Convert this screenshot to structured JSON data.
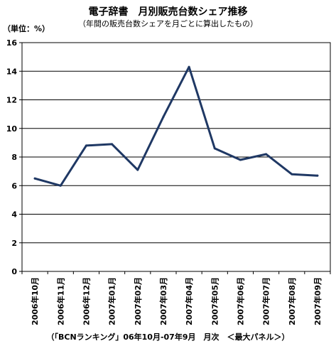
{
  "chart_data": {
    "type": "line",
    "title": "電子辞書　月別販売台数シェア推移",
    "subtitle": "（年間の販売台数シェアを月ごとに算出したもの）",
    "ylabel": "（単位：%）",
    "source": "（「BCNランキング」06年10月-07年9月　月次　＜最大パネル＞）",
    "categories": [
      "2006年10月",
      "2006年11月",
      "2006年12月",
      "2007年01月",
      "2007年02月",
      "2007年03月",
      "2007年04月",
      "2007年05月",
      "2007年06月",
      "2007年07月",
      "2007年08月",
      "2007年09月"
    ],
    "series": [
      {
        "values": [
          6.5,
          6.0,
          8.8,
          8.9,
          7.1,
          10.8,
          14.3,
          8.6,
          7.8,
          8.2,
          6.8,
          6.7
        ]
      }
    ],
    "ylim": [
      0,
      16
    ],
    "yticks": [
      "0",
      "2",
      "4",
      "6",
      "8",
      "10",
      "12",
      "14",
      "16"
    ],
    "grid": true,
    "line_color": "#1f3864",
    "grid_color": "#000000"
  }
}
